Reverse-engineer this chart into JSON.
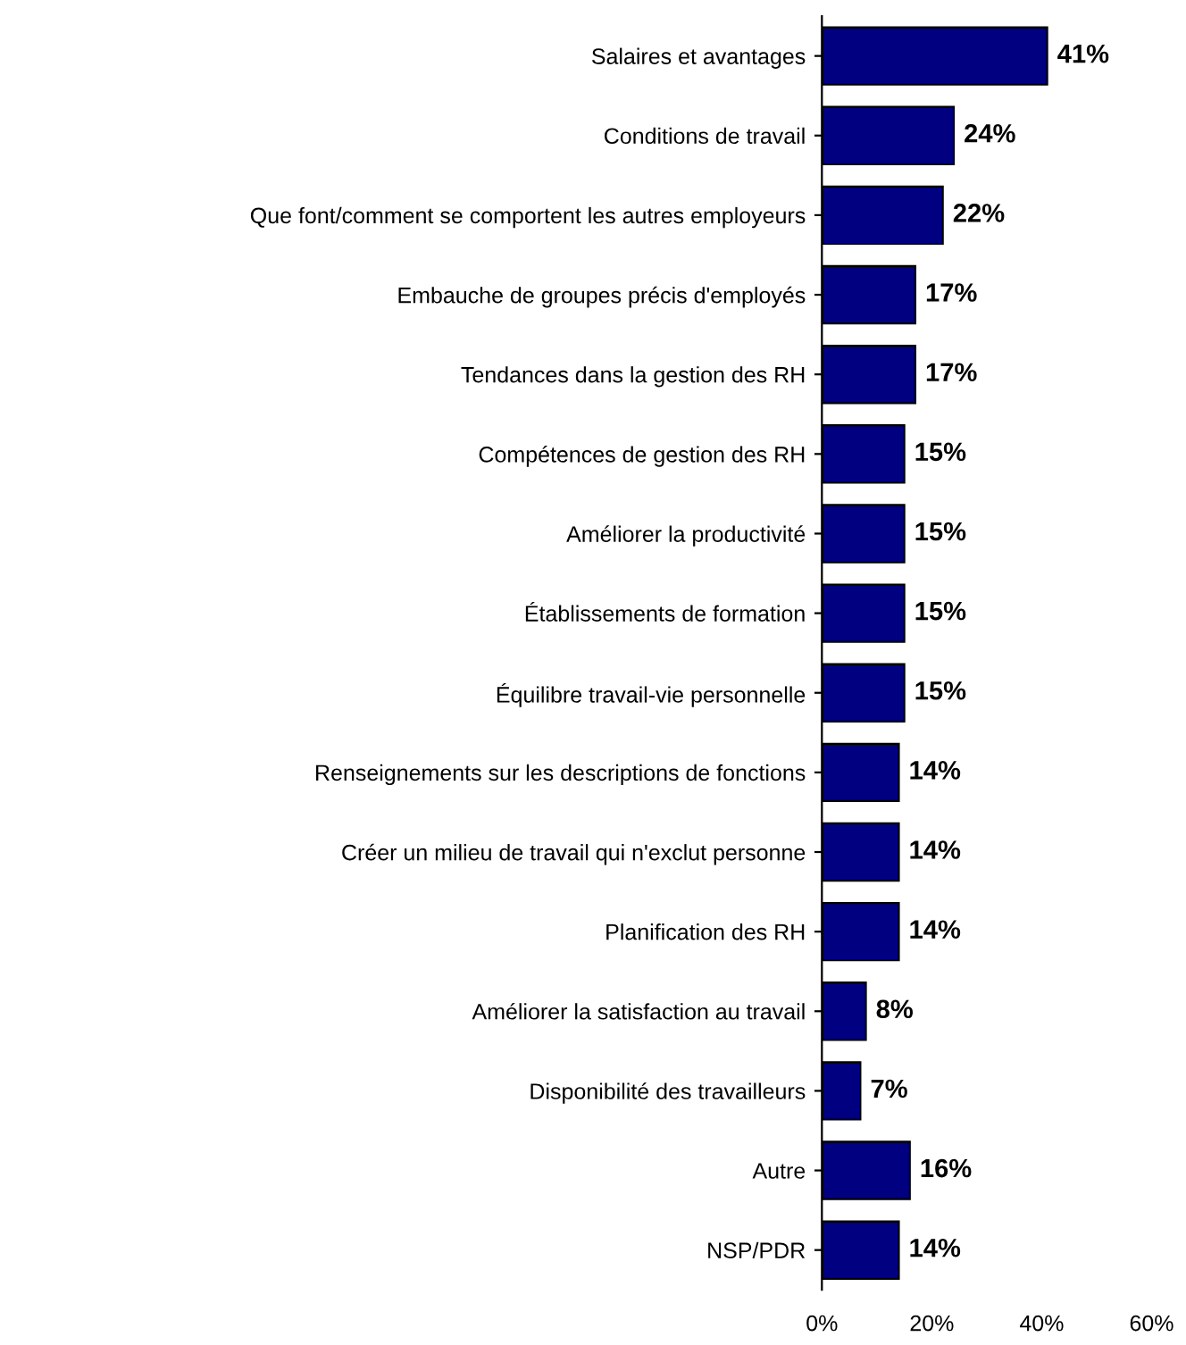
{
  "chart_data": {
    "type": "bar",
    "orientation": "horizontal",
    "categories": [
      "Salaires et avantages",
      "Conditions de travail",
      "Que font/comment se comportent les autres employeurs",
      "Embauche de groupes précis d'employés",
      "Tendances dans la gestion des RH",
      "Compétences de gestion des RH",
      "Améliorer la productivité",
      "Établissements de formation",
      "Équilibre travail-vie personnelle",
      "Renseignements sur les descriptions de fonctions",
      "Créer un milieu de travail qui n'exclut personne",
      "Planification des RH",
      "Améliorer la satisfaction au travail",
      "Disponibilité des travailleurs",
      "Autre",
      "NSP/PDR"
    ],
    "values": [
      41,
      24,
      22,
      17,
      17,
      15,
      15,
      15,
      15,
      14,
      14,
      14,
      8,
      7,
      16,
      14
    ],
    "value_labels": [
      "41%",
      "24%",
      "22%",
      "17%",
      "17%",
      "15%",
      "15%",
      "15%",
      "15%",
      "14%",
      "14%",
      "14%",
      "8%",
      "7%",
      "16%",
      "14%"
    ],
    "color": "#000080",
    "xlim": [
      0,
      60
    ],
    "xticks": [
      {
        "value": 0,
        "label": "0%"
      },
      {
        "value": 20,
        "label": "20%"
      },
      {
        "value": 40,
        "label": "40%"
      },
      {
        "value": 60,
        "label": "60%"
      }
    ],
    "grid": false,
    "legend": false
  }
}
